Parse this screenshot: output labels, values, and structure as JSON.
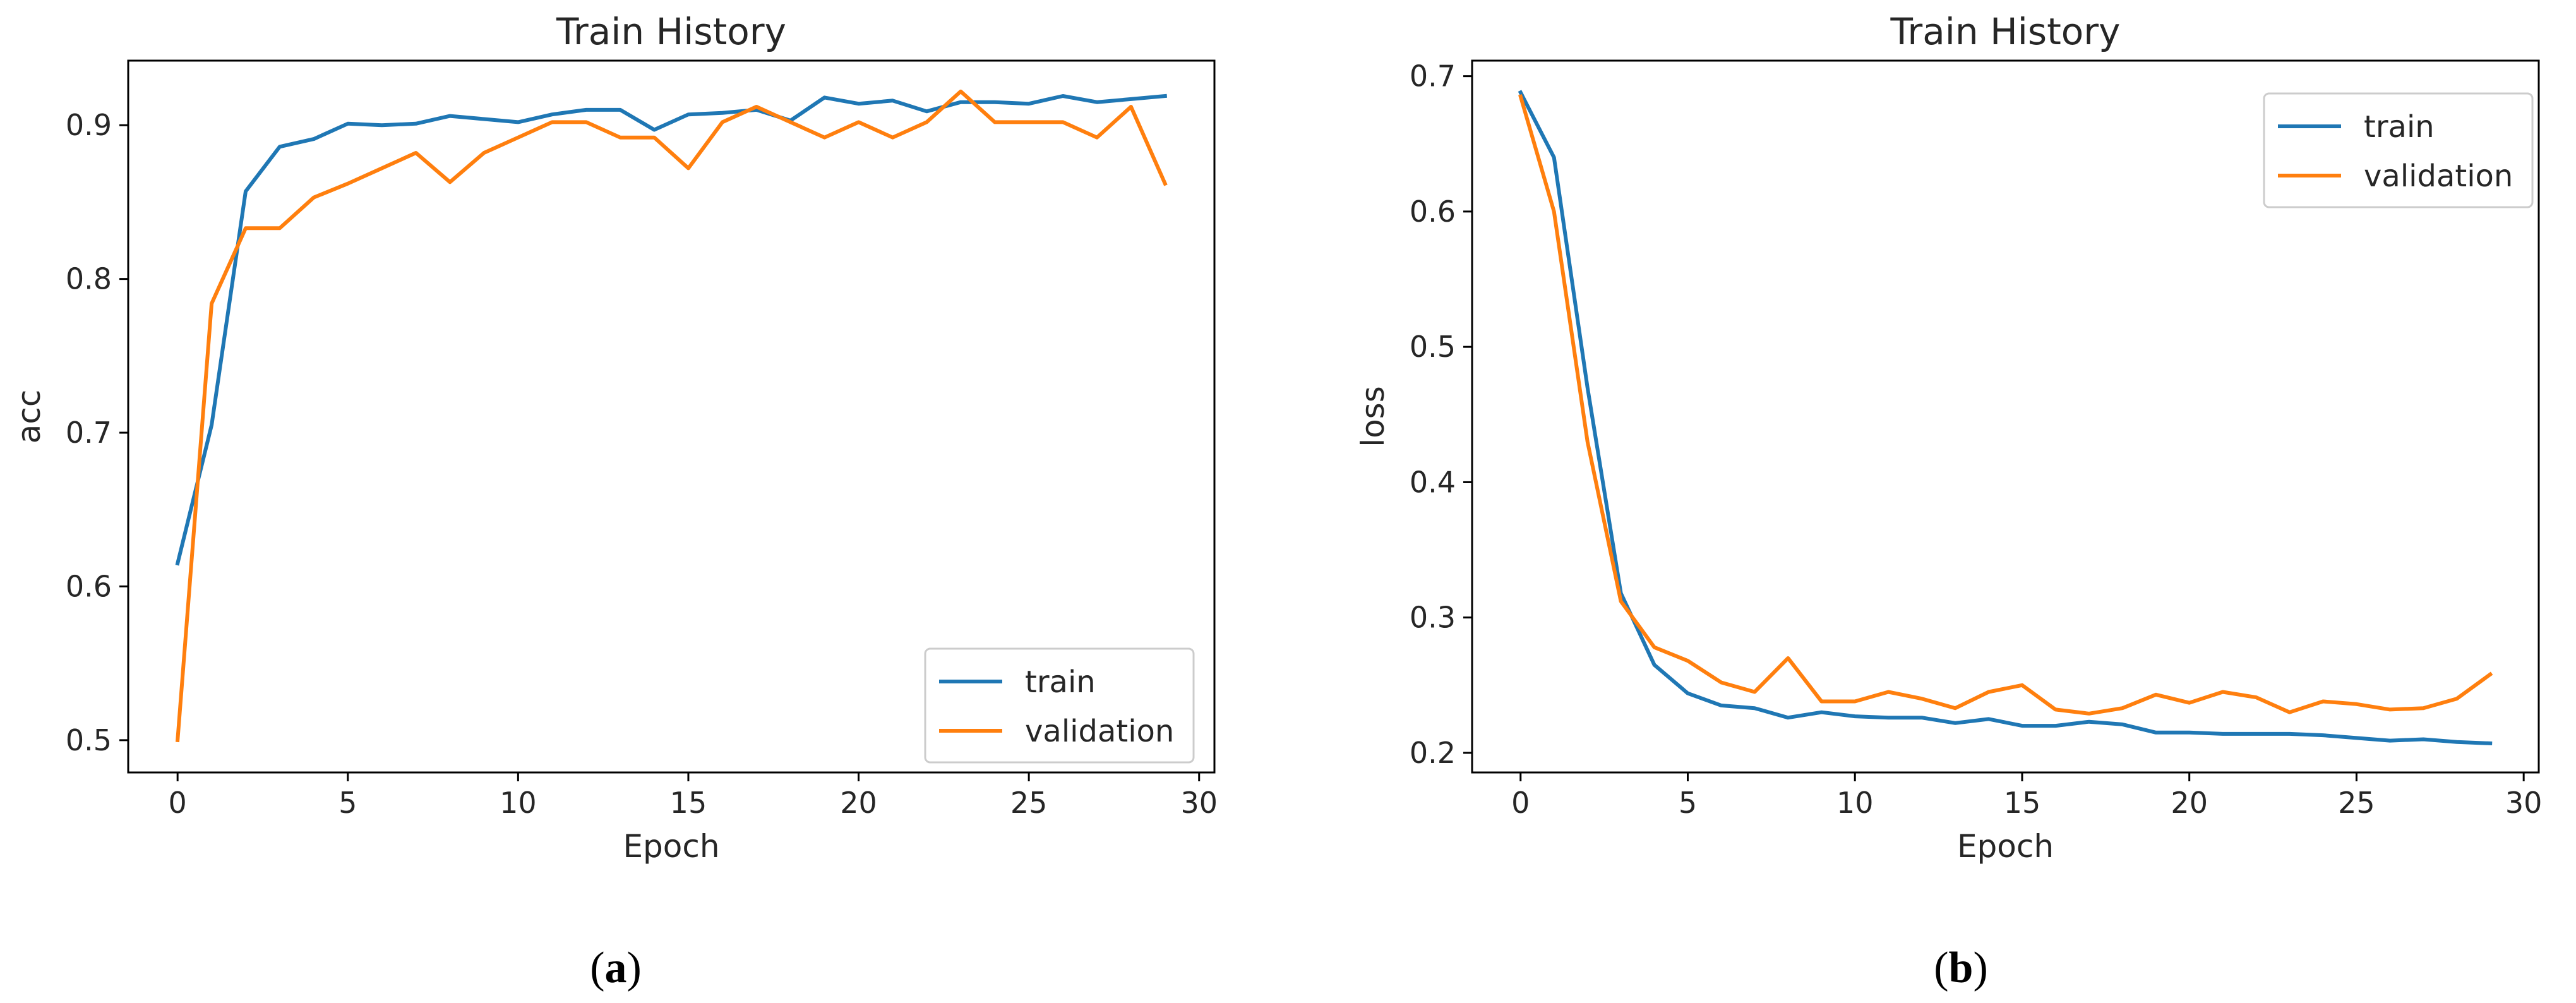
{
  "chart_data": [
    {
      "type": "line",
      "panel_label": "a",
      "title": "Train History",
      "xlabel": "Epoch",
      "ylabel": "acc",
      "xlim": [
        -1.45,
        30.45
      ],
      "ylim": [
        0.479,
        0.942
      ],
      "xticks": [
        0,
        5,
        10,
        15,
        20,
        25,
        30
      ],
      "yticks": [
        0.5,
        0.6,
        0.7,
        0.8,
        0.9
      ],
      "ytick_labels": [
        "0.5",
        "0.6",
        "0.7",
        "0.8",
        "0.9"
      ],
      "grid": false,
      "legend_position": "lower right",
      "x": [
        0,
        1,
        2,
        3,
        4,
        5,
        6,
        7,
        8,
        9,
        10,
        11,
        12,
        13,
        14,
        15,
        16,
        17,
        18,
        19,
        20,
        21,
        22,
        23,
        24,
        25,
        26,
        27,
        28,
        29
      ],
      "series": [
        {
          "name": "train",
          "color": "#1f77b4",
          "values": [
            0.615,
            0.705,
            0.857,
            0.886,
            0.891,
            0.901,
            0.9,
            0.901,
            0.906,
            0.904,
            0.902,
            0.907,
            0.91,
            0.91,
            0.897,
            0.907,
            0.908,
            0.91,
            0.903,
            0.918,
            0.914,
            0.916,
            0.909,
            0.915,
            0.915,
            0.914,
            0.919,
            0.915,
            0.917,
            0.919
          ]
        },
        {
          "name": "validation",
          "color": "#ff7f0e",
          "values": [
            0.5,
            0.784,
            0.833,
            0.833,
            0.853,
            0.862,
            0.872,
            0.882,
            0.863,
            0.882,
            0.892,
            0.902,
            0.902,
            0.892,
            0.892,
            0.872,
            0.902,
            0.912,
            0.902,
            0.892,
            0.902,
            0.892,
            0.902,
            0.922,
            0.902,
            0.902,
            0.902,
            0.892,
            0.912,
            0.862
          ]
        }
      ]
    },
    {
      "type": "line",
      "panel_label": "b",
      "title": "Train History",
      "xlabel": "Epoch",
      "ylabel": "loss",
      "xlim": [
        -1.45,
        30.45
      ],
      "ylim": [
        0.1855,
        0.7115
      ],
      "xticks": [
        0,
        5,
        10,
        15,
        20,
        25,
        30
      ],
      "yticks": [
        0.2,
        0.3,
        0.4,
        0.5,
        0.6,
        0.7
      ],
      "ytick_labels": [
        "0.2",
        "0.3",
        "0.4",
        "0.5",
        "0.6",
        "0.7"
      ],
      "grid": false,
      "legend_position": "upper right",
      "x": [
        0,
        1,
        2,
        3,
        4,
        5,
        6,
        7,
        8,
        9,
        10,
        11,
        12,
        13,
        14,
        15,
        16,
        17,
        18,
        19,
        20,
        21,
        22,
        23,
        24,
        25,
        26,
        27,
        28,
        29
      ],
      "series": [
        {
          "name": "train",
          "color": "#1f77b4",
          "values": [
            0.688,
            0.64,
            0.47,
            0.318,
            0.265,
            0.244,
            0.235,
            0.233,
            0.226,
            0.23,
            0.227,
            0.226,
            0.226,
            0.222,
            0.225,
            0.22,
            0.22,
            0.223,
            0.221,
            0.215,
            0.215,
            0.214,
            0.214,
            0.214,
            0.213,
            0.211,
            0.209,
            0.21,
            0.208,
            0.207
          ]
        },
        {
          "name": "validation",
          "color": "#ff7f0e",
          "values": [
            0.685,
            0.6,
            0.43,
            0.312,
            0.278,
            0.268,
            0.252,
            0.245,
            0.27,
            0.238,
            0.238,
            0.245,
            0.24,
            0.233,
            0.245,
            0.25,
            0.232,
            0.229,
            0.233,
            0.243,
            0.237,
            0.245,
            0.241,
            0.23,
            0.238,
            0.236,
            0.232,
            0.233,
            0.24,
            0.258
          ]
        }
      ]
    }
  ]
}
